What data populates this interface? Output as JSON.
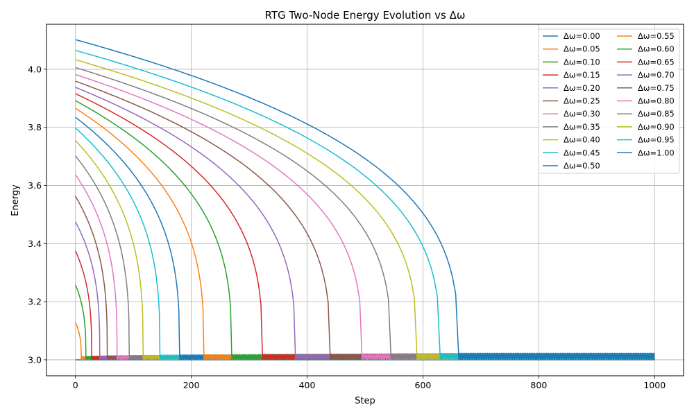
{
  "chart_data": {
    "type": "line",
    "title": "RTG Two-Node Energy Evolution vs Δω",
    "xlabel": "Step",
    "ylabel": "Energy",
    "xlim": [
      -50,
      1050
    ],
    "ylim": [
      2.945,
      4.155
    ],
    "xticks": [
      0,
      200,
      400,
      600,
      800,
      1000
    ],
    "yticks": [
      3.0,
      3.2,
      3.4,
      3.6,
      3.8,
      4.0
    ],
    "xtick_labels": [
      "0",
      "200",
      "400",
      "600",
      "800",
      "1000"
    ],
    "ytick_labels": [
      "3.0",
      "3.2",
      "3.4",
      "3.6",
      "3.8",
      "4.0"
    ],
    "grid": true,
    "legend_position": "upper right",
    "legend_columns": 2,
    "x_max_step": 1000,
    "series": [
      {
        "name": "Δω=0.00",
        "color": "#1f77b4",
        "e0": 3.0,
        "t_c": 0
      },
      {
        "name": "Δω=0.05",
        "color": "#ff7f0e",
        "e0": 3.128,
        "t_c": 10
      },
      {
        "name": "Δω=0.10",
        "color": "#2ca02c",
        "e0": 3.258,
        "t_c": 18
      },
      {
        "name": "Δω=0.15",
        "color": "#d62728",
        "e0": 3.375,
        "t_c": 28
      },
      {
        "name": "Δω=0.20",
        "color": "#9467bd",
        "e0": 3.475,
        "t_c": 42
      },
      {
        "name": "Δω=0.25",
        "color": "#8c564b",
        "e0": 3.563,
        "t_c": 55
      },
      {
        "name": "Δω=0.30",
        "color": "#e377c2",
        "e0": 3.637,
        "t_c": 72
      },
      {
        "name": "Δω=0.35",
        "color": "#7f7f7f",
        "e0": 3.702,
        "t_c": 93
      },
      {
        "name": "Δω=0.40",
        "color": "#bcbd22",
        "e0": 3.755,
        "t_c": 117
      },
      {
        "name": "Δω=0.45",
        "color": "#17becf",
        "e0": 3.798,
        "t_c": 146
      },
      {
        "name": "Δω=0.50",
        "color": "#1f77b4",
        "e0": 3.835,
        "t_c": 180
      },
      {
        "name": "Δω=0.55",
        "color": "#ff7f0e",
        "e0": 3.866,
        "t_c": 222
      },
      {
        "name": "Δω=0.60",
        "color": "#2ca02c",
        "e0": 3.892,
        "t_c": 270
      },
      {
        "name": "Δω=0.65",
        "color": "#d62728",
        "e0": 3.916,
        "t_c": 323
      },
      {
        "name": "Δω=0.70",
        "color": "#9467bd",
        "e0": 3.938,
        "t_c": 380
      },
      {
        "name": "Δω=0.75",
        "color": "#8c564b",
        "e0": 3.959,
        "t_c": 440
      },
      {
        "name": "Δω=0.80",
        "color": "#e377c2",
        "e0": 3.982,
        "t_c": 495
      },
      {
        "name": "Δω=0.85",
        "color": "#7f7f7f",
        "e0": 4.006,
        "t_c": 545
      },
      {
        "name": "Δω=0.90",
        "color": "#bcbd22",
        "e0": 4.033,
        "t_c": 590
      },
      {
        "name": "Δω=0.95",
        "color": "#17becf",
        "e0": 4.065,
        "t_c": 630
      },
      {
        "name": "Δω=1.00",
        "color": "#1f77b4",
        "e0": 4.102,
        "t_c": 662
      }
    ]
  }
}
